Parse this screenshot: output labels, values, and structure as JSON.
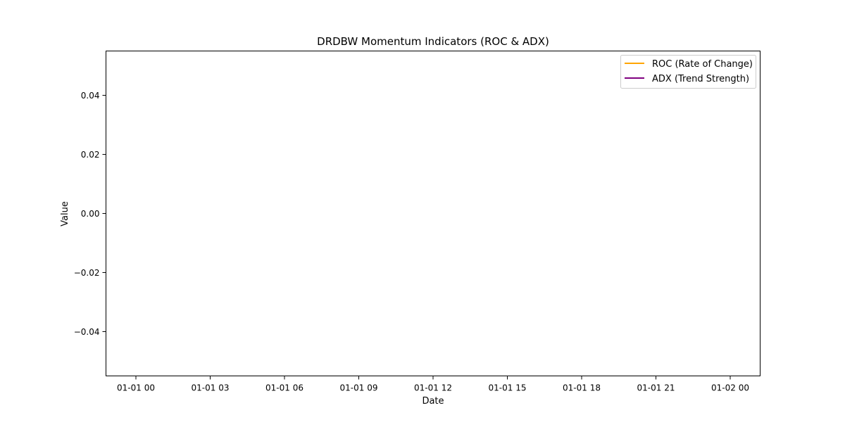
{
  "chart_data": {
    "type": "line",
    "title": "DRDBW Momentum Indicators (ROC & ADX)",
    "xlabel": "Date",
    "ylabel": "Value",
    "x_tick_labels": [
      "01-01 00",
      "01-01 03",
      "01-01 06",
      "01-01 09",
      "01-01 12",
      "01-01 15",
      "01-01 18",
      "01-01 21",
      "01-02 00"
    ],
    "y_ticks": [
      0.04,
      0.02,
      0.0,
      -0.02,
      -0.04
    ],
    "y_tick_labels": [
      "0.04",
      "0.02",
      "0.00",
      "−0.02",
      "−0.04"
    ],
    "ylim": [
      -0.055,
      0.055
    ],
    "grid": false,
    "legend_position": "top-right",
    "series": [
      {
        "name": "ROC (Rate of Change)",
        "color": "#ffa500",
        "x": [],
        "y": []
      },
      {
        "name": "ADX (Trend Strength)",
        "color": "#800080",
        "x": [],
        "y": []
      }
    ]
  }
}
